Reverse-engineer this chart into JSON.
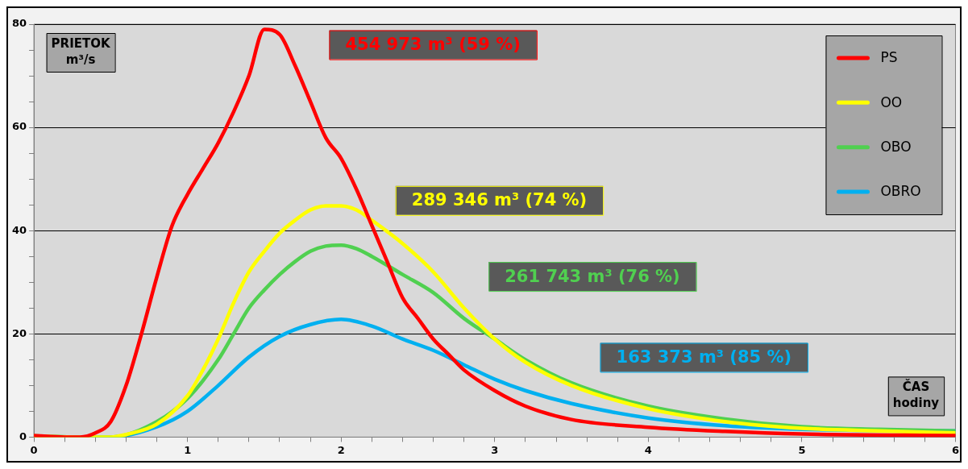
{
  "chart_data": {
    "type": "line",
    "xlabel": "ČAS hodiny",
    "ylabel": "PRIETOK m³/s",
    "xlim": [
      0,
      6
    ],
    "xticks": [
      0,
      {
        "value": 0.2,
        "label": null
      },
      {
        "value": 0.4,
        "label": null
      },
      {
        "value": 0.6,
        "label": null
      },
      {
        "value": 0.8,
        "label": null
      },
      1,
      {
        "value": 1.2,
        "label": null
      },
      {
        "value": 1.4,
        "label": null
      },
      {
        "value": 1.6,
        "label": null
      },
      {
        "value": 1.8,
        "label": null
      },
      2,
      {
        "value": 2.2,
        "label": null
      },
      {
        "value": 2.4,
        "label": null
      },
      {
        "value": 2.6,
        "label": null
      },
      {
        "value": 2.8,
        "label": null
      },
      3,
      {
        "value": 3.2,
        "label": null
      },
      {
        "value": 3.4,
        "label": null
      },
      {
        "value": 3.6,
        "label": null
      },
      {
        "value": 3.8,
        "label": null
      },
      4,
      {
        "value": 4.2,
        "label": null
      },
      {
        "value": 4.4,
        "label": null
      },
      {
        "value": 4.6,
        "label": null
      },
      {
        "value": 4.8,
        "label": null
      },
      5,
      {
        "value": 5.2,
        "label": null
      },
      {
        "value": 5.4,
        "label": null
      },
      {
        "value": 5.6,
        "label": null
      },
      {
        "value": 5.8,
        "label": null
      },
      6
    ],
    "ylim": [
      0,
      80
    ],
    "yticks": [
      0,
      {
        "value": 5,
        "label": null
      },
      {
        "value": 10,
        "label": null
      },
      {
        "value": 15,
        "label": null
      },
      20,
      {
        "value": 25,
        "label": null
      },
      {
        "value": 30,
        "label": null
      },
      {
        "value": 35,
        "label": null
      },
      40,
      {
        "value": 45,
        "label": null
      },
      {
        "value": 50,
        "label": null
      },
      {
        "value": 55,
        "label": null
      },
      60,
      {
        "value": 65,
        "label": null
      },
      {
        "value": 70,
        "label": null
      },
      {
        "value": 75,
        "label": null
      },
      80
    ],
    "grid": "y",
    "legend": "top right",
    "marker": "none",
    "line_style": "solid",
    "annotations": [
      "454 973 m³ (59 %)",
      "289 346 m³ (74 %)",
      "261 743 m³ (76 %)",
      "163 373 m³ (85 %)"
    ],
    "series": [
      {
        "name": "PS",
        "color": "#ff0000",
        "x": [
          0,
          0.2,
          0.3,
          0.4,
          0.5,
          0.6,
          0.7,
          0.8,
          0.9,
          1.0,
          1.1,
          1.2,
          1.3,
          1.4,
          1.5,
          1.6,
          1.7,
          1.8,
          1.9,
          2.0,
          2.1,
          2.2,
          2.3,
          2.4,
          2.5,
          2.6,
          2.7,
          2.8,
          3.0,
          3.2,
          3.5,
          4.0,
          4.5,
          5.0,
          6.0
        ],
        "values": [
          0.3,
          0,
          0,
          0.8,
          3,
          10,
          20,
          31,
          41,
          47,
          52,
          57,
          63,
          70,
          79,
          78,
          72,
          65,
          58,
          54,
          48,
          41,
          34,
          27,
          23,
          19,
          16,
          13,
          9,
          6,
          3.4,
          1.9,
          1.1,
          0.6,
          0.3
        ]
      },
      {
        "name": "OO",
        "color": "#ffff00",
        "x": [
          0,
          0.3,
          0.5,
          0.6,
          0.8,
          1.0,
          1.1,
          1.2,
          1.3,
          1.4,
          1.5,
          1.6,
          1.7,
          1.8,
          1.9,
          2.0,
          2.1,
          2.2,
          2.4,
          2.6,
          2.8,
          3.0,
          3.2,
          3.5,
          4.0,
          4.5,
          5.0,
          5.5,
          6.0
        ],
        "values": [
          0.2,
          0,
          0,
          0.5,
          2.5,
          8,
          13,
          19,
          26,
          32,
          36,
          39.5,
          42,
          44,
          44.8,
          44.8,
          44,
          42,
          37.5,
          32,
          25,
          19,
          14.5,
          10,
          5.5,
          3,
          1.7,
          1.2,
          0.8
        ]
      },
      {
        "name": "OBO",
        "color": "#50d050",
        "x": [
          0,
          0.3,
          0.5,
          0.8,
          1.0,
          1.2,
          1.3,
          1.4,
          1.5,
          1.6,
          1.7,
          1.8,
          1.9,
          2.0,
          2.1,
          2.2,
          2.4,
          2.6,
          2.8,
          3.0,
          3.2,
          3.5,
          4.0,
          4.5,
          5.0,
          5.5,
          6.0
        ],
        "values": [
          0.2,
          0,
          0,
          3,
          7.5,
          15,
          20,
          25,
          28.5,
          31.5,
          34,
          36,
          37,
          37.2,
          36.5,
          35,
          31.5,
          28,
          23,
          19,
          15,
          10.5,
          6,
          3.5,
          2,
          1.5,
          1.2
        ]
      },
      {
        "name": "OBRO",
        "color": "#00b0f0",
        "x": [
          0,
          0.3,
          0.5,
          0.8,
          1.0,
          1.2,
          1.4,
          1.6,
          1.8,
          2.0,
          2.2,
          2.4,
          2.6,
          2.8,
          3.0,
          3.2,
          3.5,
          4.0,
          4.5,
          5.0,
          6.0
        ],
        "values": [
          0.2,
          0,
          0,
          2,
          5,
          10,
          15.5,
          19.5,
          21.8,
          22.8,
          21.5,
          19,
          16.8,
          14,
          11.2,
          9,
          6.5,
          3.7,
          2.2,
          1.5,
          1.2
        ]
      }
    ]
  }
}
